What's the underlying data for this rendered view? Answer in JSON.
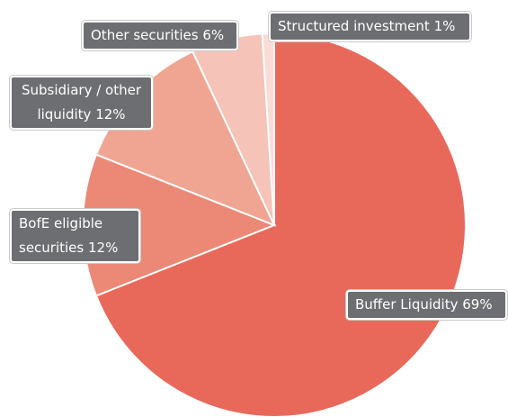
{
  "chart_data": {
    "type": "pie",
    "categories": [
      "Buffer Liquidity",
      "BofE eligible securities",
      "Subsidiary / other liquidity",
      "Other securities",
      "Structured investment"
    ],
    "values": [
      69,
      12,
      12,
      6,
      1
    ],
    "value_labels": [
      "69%",
      "12%",
      "12%",
      "6%",
      "1%"
    ],
    "colors": [
      "#e8695a",
      "#ec8876",
      "#f0a593",
      "#f5c3b7",
      "#fadcd5"
    ],
    "start_angle": 0,
    "direction": "clockwise"
  }
}
